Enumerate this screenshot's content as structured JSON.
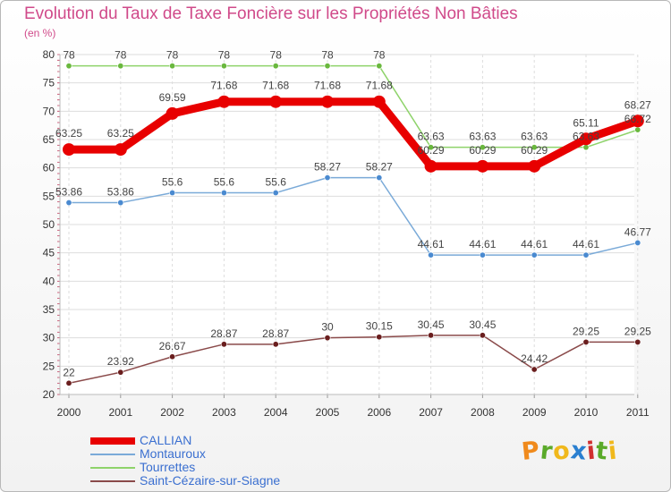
{
  "header": {
    "title": "Evolution du Taux de Taxe Foncière sur les Propriétés Non Bâties",
    "unit": "(en %)"
  },
  "logo": {
    "letters": [
      "P",
      "r",
      "o",
      "x",
      "i",
      "t",
      "i"
    ],
    "colors": [
      "#f08a1c",
      "#5aaa2a",
      "#f0b81c",
      "#2a7fd0",
      "#d03030",
      "#5aaa2a",
      "#f0b81c"
    ]
  },
  "chart_data": {
    "type": "line",
    "title": "Evolution du Taux de Taxe Foncière sur les Propriétés Non Bâties",
    "ylabel": "(en %)",
    "xlabel": "",
    "ylim": [
      20,
      80
    ],
    "yticks": [
      20,
      25,
      30,
      35,
      40,
      45,
      50,
      55,
      60,
      65,
      70,
      75,
      80
    ],
    "categories": [
      "2000",
      "2001",
      "2002",
      "2003",
      "2004",
      "2005",
      "2006",
      "2007",
      "2008",
      "2009",
      "2010",
      "2011"
    ],
    "grid": true,
    "series": [
      {
        "name": "Tourrettes",
        "color": "#8ed36a",
        "dot": "#6ab83e",
        "thick": false,
        "values": [
          78,
          78,
          78,
          78,
          78,
          78,
          78,
          63.63,
          63.63,
          63.63,
          63.63,
          66.72
        ],
        "labels": [
          "78",
          "78",
          "78",
          "78",
          "78",
          "78",
          "78",
          "63.63",
          "63.63",
          "63.63",
          "63.63",
          "66.72"
        ]
      },
      {
        "name": "Montauroux",
        "color": "#7aaad8",
        "dot": "#4a8ad0",
        "thick": false,
        "values": [
          53.86,
          53.86,
          55.6,
          55.6,
          55.6,
          58.27,
          58.27,
          44.61,
          44.61,
          44.61,
          44.61,
          46.77
        ],
        "labels": [
          "53.86",
          "53.86",
          "55.6",
          "55.6",
          "55.6",
          "58.27",
          "58.27",
          "44.61",
          "44.61",
          "44.61",
          "44.61",
          "46.77"
        ]
      },
      {
        "name": "Saint-Cézaire-sur-Siagne",
        "color": "#8a4a4a",
        "dot": "#6a1e1e",
        "thick": false,
        "values": [
          22,
          23.92,
          26.67,
          28.87,
          28.87,
          30,
          30.15,
          30.45,
          30.45,
          24.42,
          29.25,
          29.25
        ],
        "labels": [
          "22",
          "23.92",
          "26.67",
          "28.87",
          "28.87",
          "30",
          "30.15",
          "30.45",
          "30.45",
          "24.42",
          "29.25",
          "29.25"
        ]
      },
      {
        "name": "CALLIAN",
        "color": "#e80000",
        "dot": "#e80000",
        "thick": true,
        "values": [
          63.25,
          63.25,
          69.59,
          71.68,
          71.68,
          71.68,
          71.68,
          60.29,
          60.29,
          60.29,
          65.11,
          68.27
        ],
        "labels": [
          "63.25",
          "63.25",
          "69.59",
          "71.68",
          "71.68",
          "71.68",
          "71.68",
          "60.29",
          "60.29",
          "60.29",
          "65.11",
          "68.27"
        ]
      }
    ],
    "legend_order": [
      "CALLIAN",
      "Montauroux",
      "Tourrettes",
      "Saint-Cézaire-sur-Siagne"
    ]
  }
}
